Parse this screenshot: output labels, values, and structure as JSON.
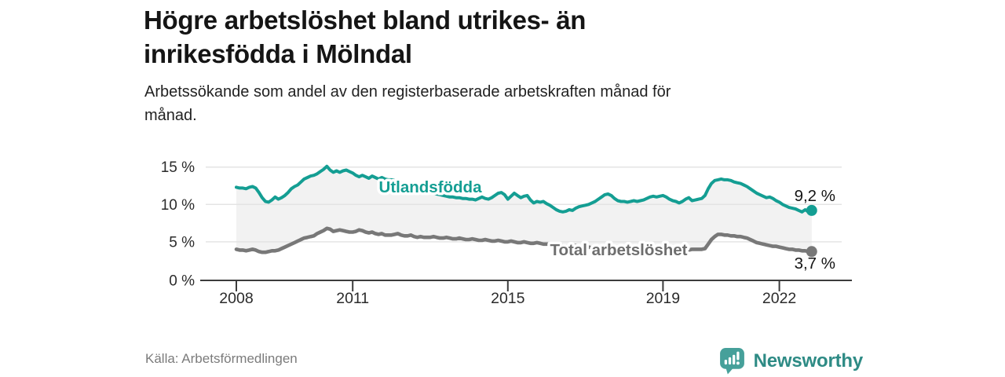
{
  "header": {
    "title_lines": [
      "Högre arbetslöshet bland utrikes- än",
      "inrikesfödda i Mölndal"
    ],
    "subtitle_lines": [
      "Arbetssökande som andel av den registerbaserade arbetskraften månad för",
      "månad."
    ]
  },
  "footer": {
    "source": "Källa: Arbetsförmedlingen",
    "logo_text": "Newsworthy"
  },
  "colors": {
    "teal": "#149e93",
    "gray": "#787878",
    "gray_label": "#6e6e6e",
    "band_fill": "#f2f2f2",
    "grid": "#e4e4e4",
    "axis": "#3c3c3c",
    "value_label": "#141414",
    "tick_label": "#2b2b2b",
    "logo_icon": "#46a09a",
    "logo_text": "#2e8b85"
  },
  "chart_data": {
    "type": "line",
    "x_unit": "month",
    "x_start_year": 2008,
    "x_end_label_year": 2022.83,
    "x_ticks": [
      2008,
      2011,
      2015,
      2019,
      2022
    ],
    "y_ticks": [
      0,
      5,
      10,
      15
    ],
    "y_tick_labels": [
      "0 %",
      "5 %",
      "10 %",
      "15 %"
    ],
    "ylim": [
      0,
      16
    ],
    "grid": true,
    "fill_between_series": true,
    "series": [
      {
        "name": "Utlandsfödda",
        "color_key": "teal",
        "end_label": "9,2 %",
        "end_value": 9.2,
        "values": [
          12.3,
          12.2,
          12.2,
          12.1,
          12.3,
          12.4,
          12.2,
          11.6,
          10.9,
          10.4,
          10.3,
          10.6,
          11.0,
          10.7,
          10.9,
          11.2,
          11.6,
          12.1,
          12.4,
          12.6,
          13.0,
          13.4,
          13.6,
          13.8,
          13.9,
          14.1,
          14.4,
          14.7,
          15.1,
          14.6,
          14.3,
          14.5,
          14.3,
          14.5,
          14.6,
          14.4,
          14.2,
          13.9,
          13.7,
          13.9,
          13.7,
          13.5,
          13.8,
          13.6,
          13.4,
          13.6,
          13.4,
          13.3,
          13.3,
          13.2,
          13.0,
          12.9,
          12.7,
          12.5,
          12.4,
          12.2,
          12.0,
          11.9,
          11.8,
          11.7,
          11.6,
          11.5,
          11.4,
          11.3,
          11.2,
          11.1,
          11.0,
          11.0,
          10.9,
          10.9,
          10.8,
          10.8,
          10.7,
          10.7,
          10.6,
          10.8,
          11.0,
          10.8,
          10.7,
          10.9,
          11.2,
          11.5,
          11.6,
          11.3,
          10.7,
          11.1,
          11.5,
          11.2,
          10.9,
          11.1,
          11.2,
          10.6,
          10.2,
          10.4,
          10.3,
          10.4,
          10.1,
          9.9,
          9.6,
          9.3,
          9.1,
          9.0,
          9.1,
          9.3,
          9.2,
          9.5,
          9.7,
          9.8,
          9.9,
          10.0,
          10.2,
          10.4,
          10.7,
          11.0,
          11.3,
          11.4,
          11.2,
          10.8,
          10.5,
          10.4,
          10.4,
          10.3,
          10.4,
          10.5,
          10.4,
          10.5,
          10.6,
          10.8,
          11.0,
          11.1,
          11.0,
          11.1,
          11.2,
          11.0,
          10.7,
          10.5,
          10.4,
          10.2,
          10.4,
          10.7,
          10.9,
          10.5,
          10.6,
          10.7,
          10.8,
          11.2,
          12.1,
          12.8,
          13.2,
          13.3,
          13.4,
          13.3,
          13.3,
          13.2,
          13.0,
          12.9,
          12.8,
          12.6,
          12.4,
          12.1,
          11.8,
          11.5,
          11.3,
          11.1,
          10.9,
          11.0,
          10.8,
          10.5,
          10.3,
          10.0,
          9.8,
          9.6,
          9.5,
          9.4,
          9.2,
          9.0,
          9.3,
          9.0,
          9.2
        ]
      },
      {
        "name": "Total arbetslöshet",
        "color_key": "gray",
        "end_label": "3,7 %",
        "end_value": 3.7,
        "values": [
          4.0,
          3.9,
          3.9,
          3.8,
          3.9,
          4.0,
          3.9,
          3.7,
          3.6,
          3.6,
          3.7,
          3.8,
          3.8,
          3.9,
          4.1,
          4.3,
          4.5,
          4.7,
          4.9,
          5.1,
          5.3,
          5.5,
          5.6,
          5.7,
          5.8,
          6.1,
          6.3,
          6.5,
          6.8,
          6.7,
          6.4,
          6.5,
          6.6,
          6.5,
          6.4,
          6.3,
          6.3,
          6.4,
          6.6,
          6.5,
          6.3,
          6.2,
          6.3,
          6.1,
          6.0,
          6.1,
          5.9,
          5.9,
          5.9,
          6.0,
          6.1,
          5.9,
          5.8,
          5.8,
          5.9,
          5.7,
          5.6,
          5.7,
          5.6,
          5.6,
          5.6,
          5.7,
          5.6,
          5.5,
          5.5,
          5.6,
          5.5,
          5.4,
          5.4,
          5.5,
          5.4,
          5.3,
          5.3,
          5.4,
          5.3,
          5.2,
          5.2,
          5.3,
          5.2,
          5.1,
          5.1,
          5.2,
          5.1,
          5.0,
          5.0,
          5.1,
          5.0,
          4.9,
          4.9,
          5.0,
          4.9,
          4.8,
          4.8,
          4.9,
          4.8,
          4.7,
          4.7,
          4.7,
          4.6,
          4.6,
          4.5,
          4.5,
          4.4,
          4.4,
          4.5,
          4.5,
          4.4,
          4.4,
          4.3,
          4.3,
          4.2,
          4.2,
          4.3,
          4.3,
          4.2,
          4.1,
          4.1,
          4.2,
          4.1,
          4.1,
          4.1,
          4.0,
          4.0,
          4.1,
          4.0,
          4.0,
          3.9,
          3.9,
          4.0,
          4.0,
          3.9,
          3.9,
          4.0,
          3.9,
          3.9,
          4.0,
          3.9,
          3.9,
          4.0,
          4.0,
          3.9,
          4.0,
          4.0,
          4.0,
          4.0,
          4.1,
          4.7,
          5.3,
          5.7,
          6.0,
          6.0,
          5.9,
          5.9,
          5.8,
          5.8,
          5.7,
          5.7,
          5.6,
          5.5,
          5.3,
          5.1,
          4.9,
          4.8,
          4.7,
          4.6,
          4.5,
          4.4,
          4.4,
          4.3,
          4.2,
          4.1,
          4.0,
          4.0,
          3.9,
          3.9,
          3.8,
          3.8,
          3.7,
          3.7
        ]
      }
    ]
  }
}
